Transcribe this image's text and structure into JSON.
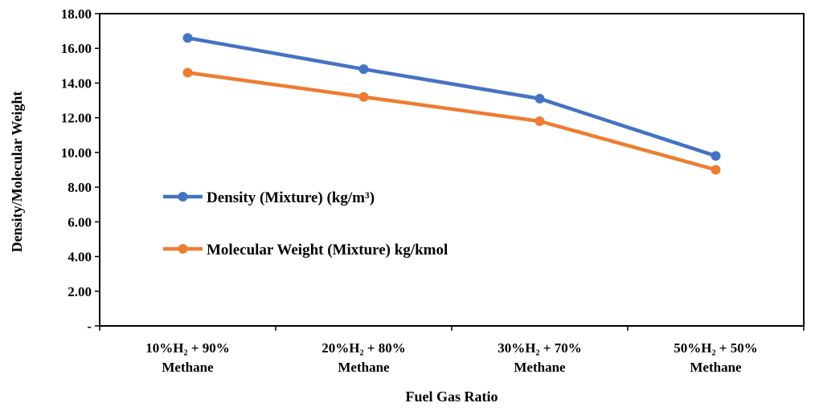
{
  "chart_data": {
    "type": "line",
    "xlabel": "Fuel Gas Ratio",
    "ylabel": "Density/Molecular Weight",
    "ylim": [
      0,
      18
    ],
    "y_ticks": [
      "-",
      "2.00",
      "4.00",
      "6.00",
      "8.00",
      "10.00",
      "12.00",
      "14.00",
      "16.00",
      "18.00"
    ],
    "categories": [
      [
        "10%H₂ + 90%",
        "Methane"
      ],
      [
        "20%H₂ + 80%",
        "Methane"
      ],
      [
        "30%H₂ + 70%",
        "Methane"
      ],
      [
        "50%H₂ + 50%",
        "Methane"
      ]
    ],
    "series": [
      {
        "name": "Density (Mixture) (kg/m³)",
        "color": "#4472C4",
        "values": [
          16.6,
          14.8,
          13.1,
          9.8
        ]
      },
      {
        "name": "Molecular Weight (Mixture) kg/kmol",
        "color": "#ED7D31",
        "values": [
          14.6,
          13.2,
          11.8,
          9.0
        ]
      }
    ],
    "legend_position": "center-left",
    "grid": false
  }
}
